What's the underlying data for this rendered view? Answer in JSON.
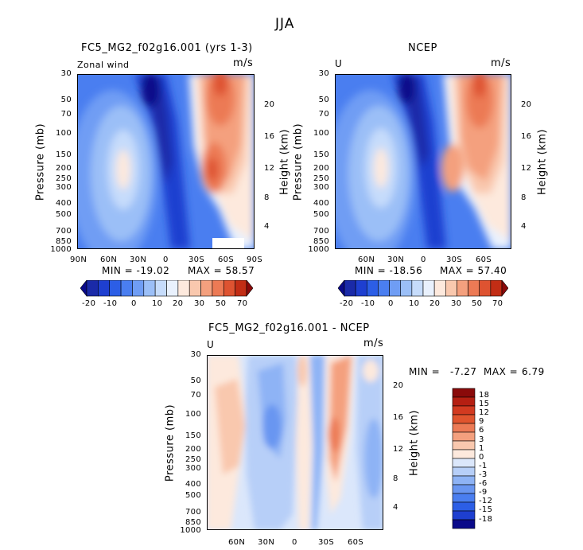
{
  "title": "JJA",
  "chart_data": [
    {
      "type": "heatmap",
      "title": "FC5_MG2_f02g16.001 (yrs 1-3)",
      "subtitle_left": "Zonal wind",
      "units": "m/s",
      "ylabel": "Pressure (mb)",
      "ylabel_right": "Height (km)",
      "y_ticks": [
        "30",
        "50",
        "70",
        "100",
        "150",
        "200",
        "250",
        "300",
        "400",
        "500",
        "700",
        "850",
        "1000"
      ],
      "y_right_ticks": [
        "20",
        "16",
        "12",
        "8",
        "4"
      ],
      "x_ticks": [
        "90N",
        "60N",
        "30N",
        "0",
        "30S",
        "60S",
        "90S"
      ],
      "min_label": "MIN = -19.02",
      "max_label": "MAX = 58.57",
      "min": -19.02,
      "max": 58.57
    },
    {
      "type": "heatmap",
      "title": "NCEP",
      "subtitle_left": "U",
      "units": "m/s",
      "ylabel": "Pressure (mb)",
      "ylabel_right": "Height (km)",
      "y_ticks": [
        "30",
        "50",
        "70",
        "100",
        "150",
        "200",
        "250",
        "300",
        "400",
        "500",
        "700",
        "850",
        "1000"
      ],
      "y_right_ticks": [
        "20",
        "16",
        "12",
        "8",
        "4"
      ],
      "x_ticks": [
        "60N",
        "30N",
        "0",
        "30S",
        "60S"
      ],
      "min_label": "MIN = -18.56",
      "max_label": "MAX = 57.40",
      "min": -18.56,
      "max": 57.4
    },
    {
      "type": "heatmap",
      "title": "FC5_MG2_f02g16.001 - NCEP",
      "subtitle_left": "U",
      "units": "m/s",
      "ylabel": "Pressure (mb)",
      "ylabel_right": "Height (km)",
      "y_ticks": [
        "30",
        "50",
        "70",
        "100",
        "150",
        "200",
        "250",
        "300",
        "400",
        "500",
        "700",
        "850",
        "1000"
      ],
      "y_right_ticks": [
        "20",
        "16",
        "12",
        "8",
        "4"
      ],
      "x_ticks": [
        "60N",
        "30N",
        "0",
        "30S",
        "60S"
      ],
      "min_label": "MIN =",
      "min_value": "-7.27",
      "max_label": "MAX =",
      "max_value": "6.79",
      "min": -7.27,
      "max": 6.79
    }
  ],
  "colorbar_main": {
    "labels": [
      "-20",
      "-10",
      "0",
      "10",
      "20",
      "30",
      "50",
      "70"
    ],
    "colors": [
      "#0a0a8a",
      "#1a2aa8",
      "#1e3fd0",
      "#2c5ee6",
      "#4a7ef0",
      "#6f9df4",
      "#9bbff7",
      "#c6dcfb",
      "#e9f1fd",
      "#fde9dd",
      "#f9c8ae",
      "#f4a07e",
      "#ec7a55",
      "#de5331",
      "#c22d15",
      "#8a0a0a"
    ]
  },
  "colorbar_diff": {
    "labels": [
      "18",
      "15",
      "12",
      "9",
      "6",
      "3",
      "1",
      "0",
      "-1",
      "-3",
      "-6",
      "-9",
      "-12",
      "-15",
      "-18"
    ],
    "colors": [
      "#8a0a0a",
      "#b51f12",
      "#d23a20",
      "#e0542e",
      "#ec7a55",
      "#f4a07e",
      "#f9c8ae",
      "#fde9dd",
      "#dbe7fb",
      "#b7cff8",
      "#8eb3f5",
      "#6996f1",
      "#4a7ef0",
      "#2c5ee6",
      "#1e3fd0",
      "#0a0a8a"
    ]
  }
}
